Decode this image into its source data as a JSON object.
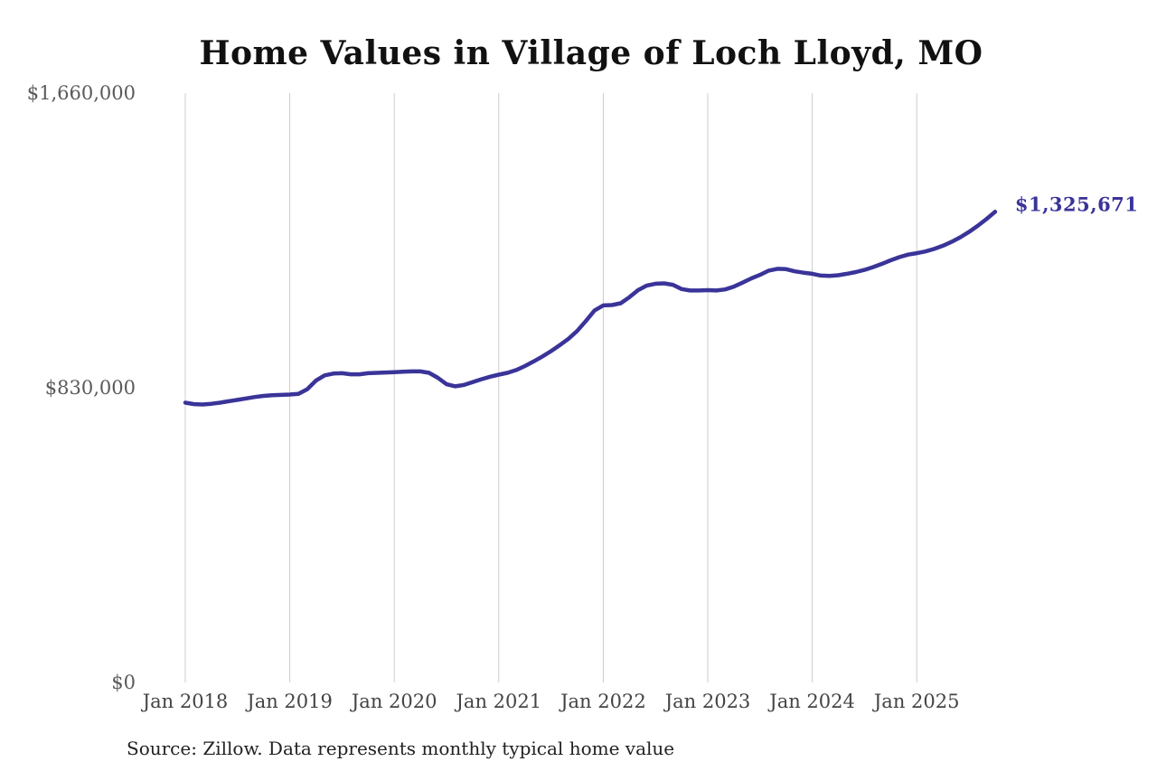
{
  "chart_data": {
    "type": "line",
    "title": "Home Values in Village of Loch Lloyd, MO",
    "source_note": "Source: Zillow. Data represents monthly typical home value",
    "x_start": "2018-01",
    "x_end": "2025-10",
    "frequency": "monthly",
    "x_tick_labels": [
      "Jan 2018",
      "Jan 2019",
      "Jan 2020",
      "Jan 2021",
      "Jan 2022",
      "Jan 2023",
      "Jan 2024",
      "Jan 2025"
    ],
    "y_tick_labels": [
      "$1,660,000",
      "$830,000",
      "$0"
    ],
    "y_tick_values": [
      1660000,
      830000,
      0
    ],
    "ylim": [
      0,
      1660000
    ],
    "grid": "vertical-only",
    "legend": "none",
    "line_color": "#3a3499",
    "gridline_color": "#cccccc",
    "end_label": "$1,325,671",
    "end_value": 1325671,
    "series": [
      {
        "name": "Typical home value (USD)",
        "values": [
          788000,
          784000,
          783000,
          785000,
          788000,
          792000,
          796000,
          800000,
          804000,
          807000,
          809000,
          810000,
          811000,
          813000,
          826000,
          850000,
          865000,
          870000,
          871000,
          868000,
          868000,
          871000,
          872000,
          873000,
          874000,
          875000,
          876000,
          876000,
          872000,
          858000,
          840000,
          834000,
          838000,
          846000,
          854000,
          861000,
          867000,
          872000,
          880000,
          891000,
          904000,
          918000,
          933000,
          950000,
          968000,
          990000,
          1018000,
          1048000,
          1062000,
          1063000,
          1068000,
          1085000,
          1105000,
          1118000,
          1123000,
          1124000,
          1120000,
          1108000,
          1104000,
          1104000,
          1105000,
          1104000,
          1107000,
          1115000,
          1126000,
          1138000,
          1148000,
          1160000,
          1165000,
          1164000,
          1158000,
          1154000,
          1151000,
          1146000,
          1145000,
          1147000,
          1151000,
          1156000,
          1162000,
          1170000,
          1179000,
          1189000,
          1198000,
          1205000,
          1209000,
          1214000,
          1221000,
          1230000,
          1241000,
          1254000,
          1269000,
          1286000,
          1305000,
          1325671
        ]
      }
    ]
  }
}
